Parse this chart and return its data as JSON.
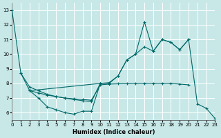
{
  "xlabel": "Humidex (Indice chaleur)",
  "bg_color": "#c8e8e8",
  "grid_color": "#ffffff",
  "line_color": "#006868",
  "xlim": [
    0,
    23
  ],
  "ylim": [
    5.5,
    13.5
  ],
  "xticks": [
    0,
    1,
    2,
    3,
    4,
    5,
    6,
    7,
    8,
    9,
    10,
    11,
    12,
    13,
    14,
    15,
    16,
    17,
    18,
    19,
    20,
    21,
    22,
    23
  ],
  "yticks": [
    6,
    7,
    8,
    9,
    10,
    11,
    12,
    13
  ],
  "lines": [
    {
      "x": [
        0,
        1,
        2,
        3,
        4,
        5,
        6,
        7,
        8,
        9,
        10,
        11,
        12,
        13,
        14,
        15,
        16,
        17,
        18,
        19,
        20,
        21,
        22,
        23
      ],
      "y": [
        13.0,
        8.7,
        7.5,
        7.0,
        6.4,
        6.2,
        6.0,
        5.9,
        6.1,
        6.1,
        8.0,
        8.0,
        8.5,
        9.6,
        10.0,
        12.2,
        10.2,
        11.0,
        10.8,
        10.3,
        11.0,
        6.6,
        6.3,
        5.6
      ]
    },
    {
      "x": [
        2,
        3,
        4,
        5,
        6,
        7,
        8,
        9,
        10,
        11,
        12,
        13,
        14,
        15,
        16,
        17,
        18,
        19,
        20
      ],
      "y": [
        7.5,
        7.35,
        7.2,
        7.1,
        7.0,
        6.95,
        6.9,
        6.85,
        7.9,
        7.95,
        7.97,
        7.98,
        7.99,
        8.0,
        8.0,
        8.0,
        8.0,
        7.95,
        7.9
      ]
    },
    {
      "x": [
        1,
        2,
        3,
        4,
        5,
        6,
        7,
        8,
        9,
        10
      ],
      "y": [
        8.7,
        7.75,
        7.5,
        7.25,
        7.1,
        7.0,
        6.9,
        6.82,
        6.75,
        8.0
      ]
    },
    {
      "x": [
        2,
        10,
        11,
        12,
        13,
        14,
        15,
        16,
        17,
        18,
        19,
        20
      ],
      "y": [
        7.5,
        8.0,
        8.05,
        8.5,
        9.6,
        10.0,
        10.5,
        10.2,
        11.0,
        10.8,
        10.3,
        11.0
      ]
    }
  ]
}
